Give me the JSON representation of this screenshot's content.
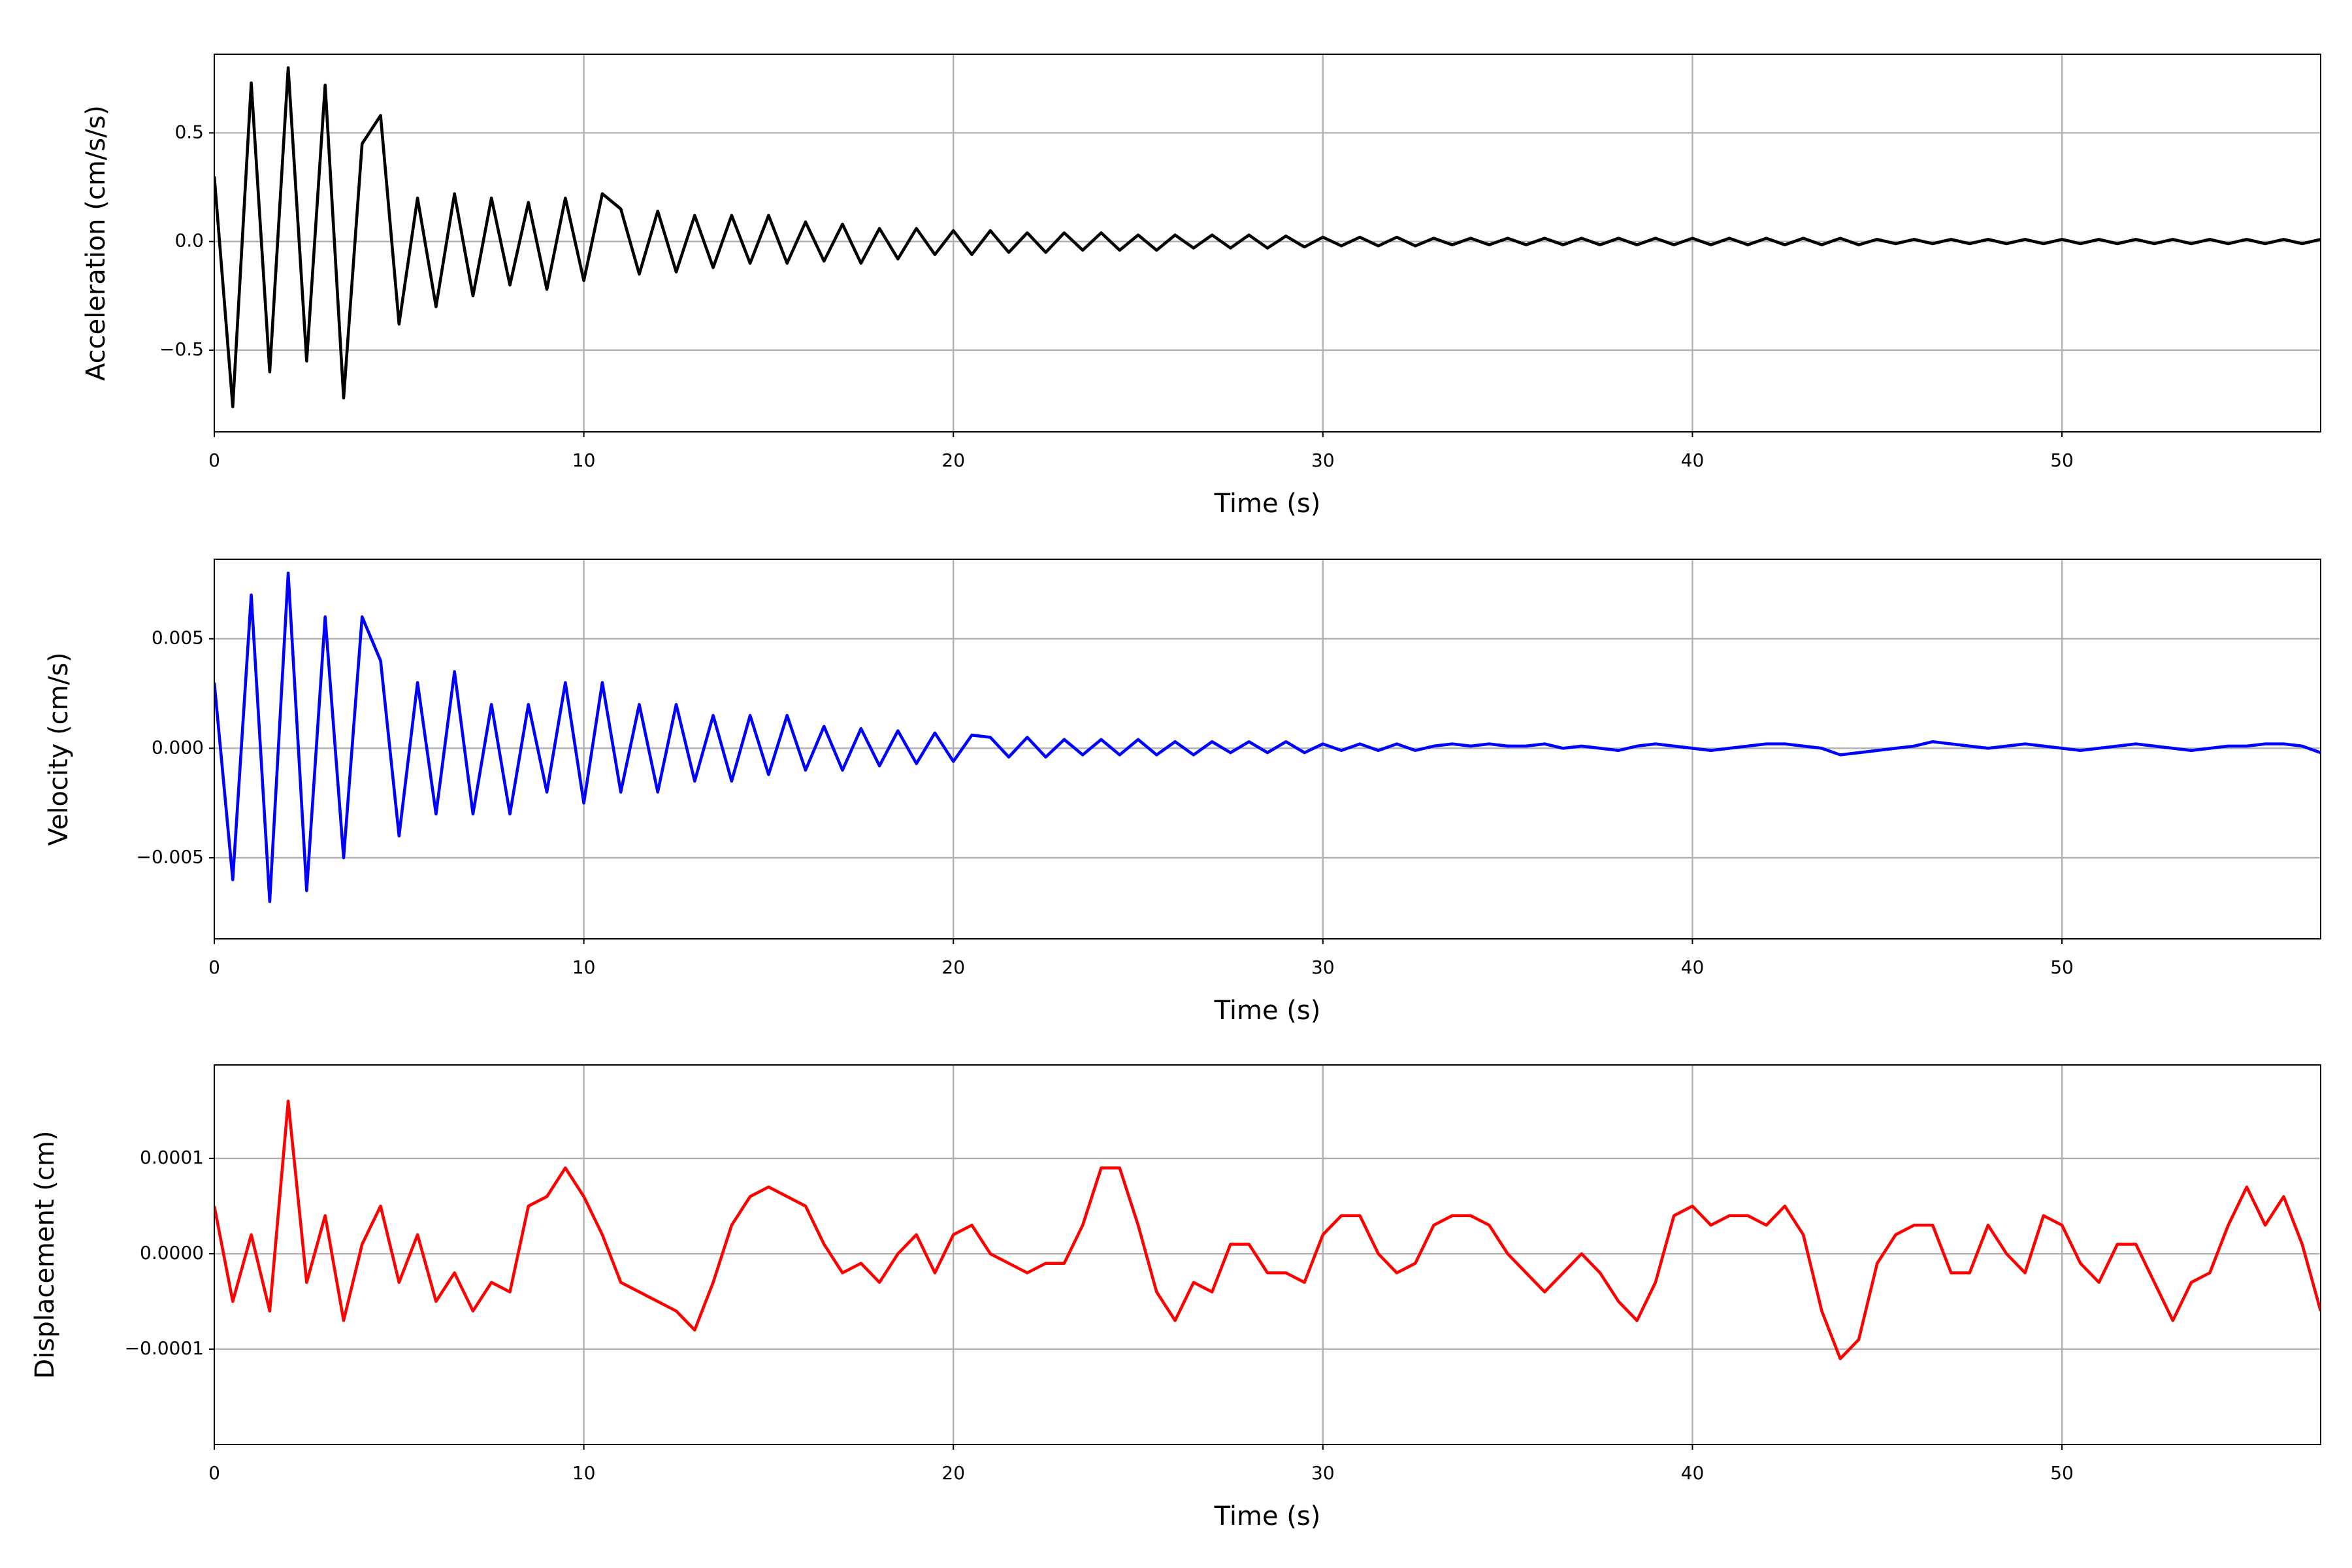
{
  "chart_data": [
    {
      "type": "line",
      "ylabel": "Acceleration (cm/s/s)",
      "xlabel": "Time (s)",
      "color": "#000000",
      "grid": true,
      "xlim": [
        0,
        57
      ],
      "xticks": [
        0,
        10,
        20,
        30,
        40,
        50
      ],
      "ylim": [
        -0.876,
        0.862
      ],
      "yticks": [
        {
          "value": -0.5,
          "label": "−0.5"
        },
        {
          "value": 0,
          "label": "0.0"
        },
        0.5
      ],
      "x": [
        0,
        0.5,
        1,
        1.5,
        2,
        2.5,
        3,
        3.5,
        4,
        4.5,
        5,
        5.5,
        6,
        6.5,
        7,
        7.5,
        8,
        8.5,
        9,
        9.5,
        10,
        10.5,
        11,
        11.5,
        12,
        12.5,
        13,
        13.5,
        14,
        14.5,
        15,
        15.5,
        16,
        16.5,
        17,
        17.5,
        18,
        18.5,
        19,
        19.5,
        20,
        20.5,
        21,
        21.5,
        22,
        22.5,
        23,
        23.5,
        24,
        24.5,
        25,
        25.5,
        26,
        26.5,
        27,
        27.5,
        28,
        28.5,
        29,
        29.5,
        30,
        30.5,
        31,
        31.5,
        32,
        32.5,
        33,
        33.5,
        34,
        34.5,
        35,
        35.5,
        36,
        36.5,
        37,
        37.5,
        38,
        38.5,
        39,
        39.5,
        40,
        40.5,
        41,
        41.5,
        42,
        42.5,
        43,
        43.5,
        44,
        44.5,
        45,
        45.5,
        46,
        46.5,
        47,
        47.5,
        48,
        48.5,
        49,
        49.5,
        50,
        50.5,
        51,
        51.5,
        52,
        52.5,
        53,
        53.5,
        54,
        54.5,
        55,
        55.5,
        56,
        56.5,
        57
      ],
      "values": [
        0.3,
        -0.76,
        0.73,
        -0.6,
        0.8,
        -0.55,
        0.72,
        -0.72,
        0.45,
        0.58,
        -0.38,
        0.2,
        -0.3,
        0.22,
        -0.25,
        0.2,
        -0.2,
        0.18,
        -0.22,
        0.2,
        -0.18,
        0.22,
        0.15,
        -0.15,
        0.14,
        -0.14,
        0.12,
        -0.12,
        0.12,
        -0.1,
        0.12,
        -0.1,
        0.09,
        -0.09,
        0.08,
        -0.1,
        0.06,
        -0.08,
        0.06,
        -0.06,
        0.05,
        -0.06,
        0.05,
        -0.05,
        0.04,
        -0.05,
        0.04,
        -0.04,
        0.04,
        -0.04,
        0.03,
        -0.04,
        0.03,
        -0.03,
        0.03,
        -0.03,
        0.03,
        -0.03,
        0.025,
        -0.025,
        0.02,
        -0.02,
        0.02,
        -0.02,
        0.02,
        -0.02,
        0.015,
        -0.015,
        0.015,
        -0.015,
        0.015,
        -0.015,
        0.015,
        -0.015,
        0.015,
        -0.015,
        0.015,
        -0.015,
        0.015,
        -0.015,
        0.015,
        -0.015,
        0.015,
        -0.015,
        0.015,
        -0.015,
        0.015,
        -0.015,
        0.015,
        -0.015,
        0.01,
        -0.01,
        0.01,
        -0.01,
        0.01,
        -0.01,
        0.01,
        -0.01,
        0.01,
        -0.01,
        0.01,
        -0.01,
        0.01,
        -0.01,
        0.01,
        -0.01,
        0.01,
        -0.01,
        0.01,
        -0.01,
        0.01,
        -0.01,
        0.01,
        -0.01,
        0.01
      ]
    },
    {
      "type": "line",
      "ylabel": "Velocity (cm/s)",
      "xlabel": "Time (s)",
      "color": "#0000ff",
      "grid": true,
      "xlim": [
        0,
        57
      ],
      "xticks": [
        0,
        10,
        20,
        30,
        40,
        50
      ],
      "ylim": [
        -0.0087,
        0.00863
      ],
      "yticks": [
        {
          "value": -0.005,
          "label": "−0.005"
        },
        {
          "value": 0,
          "label": "0.000"
        },
        0.005
      ],
      "x": [
        0,
        0.5,
        1,
        1.5,
        2,
        2.5,
        3,
        3.5,
        4,
        4.5,
        5,
        5.5,
        6,
        6.5,
        7,
        7.5,
        8,
        8.5,
        9,
        9.5,
        10,
        10.5,
        11,
        11.5,
        12,
        12.5,
        13,
        13.5,
        14,
        14.5,
        15,
        15.5,
        16,
        16.5,
        17,
        17.5,
        18,
        18.5,
        19,
        19.5,
        20,
        20.5,
        21,
        21.5,
        22,
        22.5,
        23,
        23.5,
        24,
        24.5,
        25,
        25.5,
        26,
        26.5,
        27,
        27.5,
        28,
        28.5,
        29,
        29.5,
        30,
        30.5,
        31,
        31.5,
        32,
        32.5,
        33,
        33.5,
        34,
        34.5,
        35,
        35.5,
        36,
        36.5,
        37,
        37.5,
        38,
        38.5,
        39,
        39.5,
        40,
        40.5,
        41,
        41.5,
        42,
        42.5,
        43,
        43.5,
        44,
        44.5,
        45,
        45.5,
        46,
        46.5,
        47,
        47.5,
        48,
        48.5,
        49,
        49.5,
        50,
        50.5,
        51,
        51.5,
        52,
        52.5,
        53,
        53.5,
        54,
        54.5,
        55,
        55.5,
        56,
        56.5,
        57
      ],
      "values": [
        0.003,
        -0.006,
        0.007,
        -0.007,
        0.008,
        -0.0065,
        0.006,
        -0.005,
        0.006,
        0.004,
        -0.004,
        0.003,
        -0.003,
        0.0035,
        -0.003,
        0.002,
        -0.003,
        0.002,
        -0.002,
        0.003,
        -0.0025,
        0.003,
        -0.002,
        0.002,
        -0.002,
        0.002,
        -0.0015,
        0.0015,
        -0.0015,
        0.0015,
        -0.0012,
        0.0015,
        -0.001,
        0.001,
        -0.001,
        0.0009,
        -0.0008,
        0.0008,
        -0.0007,
        0.0007,
        -0.0006,
        0.0006,
        0.0005,
        -0.0004,
        0.0005,
        -0.0004,
        0.0004,
        -0.0003,
        0.0004,
        -0.0003,
        0.0004,
        -0.0003,
        0.0003,
        -0.0003,
        0.0003,
        -0.0002,
        0.0003,
        -0.0002,
        0.0003,
        -0.0002,
        0.0002,
        -0.0001,
        0.0002,
        -0.0001,
        0.0002,
        -0.0001,
        0.0001,
        0.0002,
        0.0001,
        0.0002,
        0.0001,
        0.0001,
        0.0002,
        0,
        0.0001,
        0,
        -0.0001,
        0.0001,
        0.0002,
        0.0001,
        0,
        -0.0001,
        0,
        0.0001,
        0.0002,
        0.0002,
        0.0001,
        0,
        -0.0003,
        -0.0002,
        -0.0001,
        0,
        0.0001,
        0.0003,
        0.0002,
        0.0001,
        0,
        0.0001,
        0.0002,
        0.0001,
        0,
        -0.0001,
        0,
        0.0001,
        0.0002,
        0.0001,
        0,
        -0.0001,
        0,
        0.0001,
        0.0001,
        0.0002,
        0.0002,
        0.0001,
        -0.0002
      ]
    },
    {
      "type": "line",
      "ylabel": "Displacement (cm)",
      "xlabel": "Time (s)",
      "color": "#ff0000",
      "grid": true,
      "xlim": [
        0,
        57
      ],
      "xticks": [
        0,
        10,
        20,
        30,
        40,
        50
      ],
      "ylim": [
        -0.0002,
        0.000198
      ],
      "yticks": [
        {
          "value": -0.0001,
          "label": "−0.0001"
        },
        {
          "value": 0,
          "label": "0.0000"
        },
        0.0001
      ],
      "x": [
        0,
        0.5,
        1,
        1.5,
        2,
        2.5,
        3,
        3.5,
        4,
        4.5,
        5,
        5.5,
        6,
        6.5,
        7,
        7.5,
        8,
        8.5,
        9,
        9.5,
        10,
        10.5,
        11,
        11.5,
        12,
        12.5,
        13,
        13.5,
        14,
        14.5,
        15,
        15.5,
        16,
        16.5,
        17,
        17.5,
        18,
        18.5,
        19,
        19.5,
        20,
        20.5,
        21,
        21.5,
        22,
        22.5,
        23,
        23.5,
        24,
        24.5,
        25,
        25.5,
        26,
        26.5,
        27,
        27.5,
        28,
        28.5,
        29,
        29.5,
        30,
        30.5,
        31,
        31.5,
        32,
        32.5,
        33,
        33.5,
        34,
        34.5,
        35,
        35.5,
        36,
        36.5,
        37,
        37.5,
        38,
        38.5,
        39,
        39.5,
        40,
        40.5,
        41,
        41.5,
        42,
        42.5,
        43,
        43.5,
        44,
        44.5,
        45,
        45.5,
        46,
        46.5,
        47,
        47.5,
        48,
        48.5,
        49,
        49.5,
        50,
        50.5,
        51,
        51.5,
        52,
        52.5,
        53,
        53.5,
        54,
        54.5,
        55,
        55.5,
        56,
        56.5,
        57
      ],
      "values": [
        5e-05,
        -5e-05,
        2e-05,
        -6e-05,
        0.00016,
        -3e-05,
        4e-05,
        -7e-05,
        1e-05,
        5e-05,
        -3e-05,
        2e-05,
        -5e-05,
        -2e-05,
        -6e-05,
        -3e-05,
        -4e-05,
        5e-05,
        6e-05,
        9e-05,
        6e-05,
        2e-05,
        -3e-05,
        -4e-05,
        -5e-05,
        -6e-05,
        -8e-05,
        -3e-05,
        3e-05,
        6e-05,
        7e-05,
        6e-05,
        5e-05,
        1e-05,
        -2e-05,
        -1e-05,
        -3e-05,
        0,
        2e-05,
        -2e-05,
        2e-05,
        3e-05,
        0,
        -1e-05,
        -2e-05,
        -1e-05,
        -1e-05,
        3e-05,
        9e-05,
        9e-05,
        3e-05,
        -4e-05,
        -7e-05,
        -3e-05,
        -4e-05,
        1e-05,
        1e-05,
        -2e-05,
        -2e-05,
        -3e-05,
        2e-05,
        4e-05,
        4e-05,
        0,
        -2e-05,
        -1e-05,
        3e-05,
        4e-05,
        4e-05,
        3e-05,
        0,
        -2e-05,
        -4e-05,
        -2e-05,
        0,
        -2e-05,
        -5e-05,
        -7e-05,
        -3e-05,
        4e-05,
        5e-05,
        3e-05,
        4e-05,
        4e-05,
        3e-05,
        5e-05,
        2e-05,
        -6e-05,
        -0.00011,
        -9e-05,
        -1e-05,
        2e-05,
        3e-05,
        3e-05,
        -2e-05,
        -2e-05,
        3e-05,
        0,
        -2e-05,
        4e-05,
        3e-05,
        -1e-05,
        -3e-05,
        1e-05,
        1e-05,
        -3e-05,
        -7e-05,
        -3e-05,
        -2e-05,
        3e-05,
        7e-05,
        3e-05,
        6e-05,
        1e-05,
        -6e-05
      ]
    }
  ]
}
